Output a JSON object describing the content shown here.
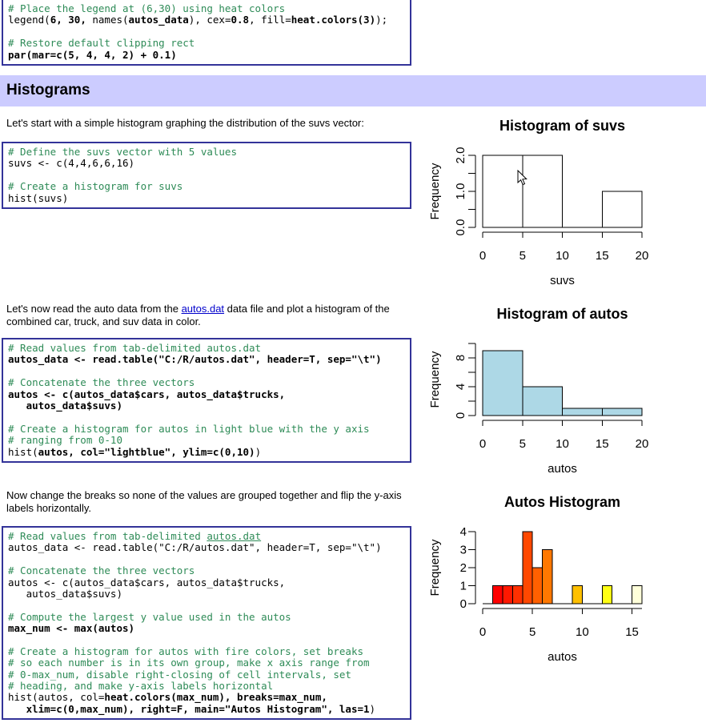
{
  "header": {
    "title": "Histograms"
  },
  "paragraphs": {
    "intro_suvs": "Let's start with a simple histogram graphing the distribution of the suvs vector:",
    "intro_autos_before": "Let's now read the auto data from the ",
    "intro_autos_link": "autos.dat",
    "intro_autos_after": " data file and plot a histogram of the combined car, truck, and suv data in color.",
    "intro_breaks": "Now change the breaks so none of the values are grouped together and flip the y-axis labels horizontally."
  },
  "colors": {
    "header_bg": "#CCCCFF",
    "code_border": "#333399",
    "comment_green": "#2E8B57",
    "link_blue": "#0000CC",
    "light_blue": "#ADD8E6"
  },
  "code_blocks": [
    {
      "lines": [
        [
          {
            "t": "# Place the legend at (6,30) using heat colors",
            "s": "c"
          }
        ],
        [
          {
            "t": "legend(",
            "s": "n"
          },
          {
            "t": "6, 30,",
            "s": "b"
          },
          {
            "t": " names(",
            "s": "n"
          },
          {
            "t": "autos_data",
            "s": "b"
          },
          {
            "t": "), cex=",
            "s": "n"
          },
          {
            "t": "0.8",
            "s": "b"
          },
          {
            "t": ", fill=",
            "s": "n"
          },
          {
            "t": "heat.colors(3)",
            "s": "b"
          },
          {
            "t": ");",
            "s": "n"
          }
        ],
        [],
        [
          {
            "t": "# Restore default clipping rect",
            "s": "c"
          }
        ],
        [
          {
            "t": "par(mar=c(5, 4, 4, 2) + 0.1)",
            "s": "b"
          }
        ]
      ]
    },
    {
      "lines": [
        [
          {
            "t": "# Define the suvs vector with 5 values",
            "s": "c"
          }
        ],
        [
          {
            "t": "suvs <- c(4,4,6,6,16)",
            "s": "n"
          }
        ],
        [],
        [
          {
            "t": "# Create a histogram for suvs",
            "s": "c"
          }
        ],
        [
          {
            "t": "hist(suvs)",
            "s": "n"
          }
        ]
      ]
    },
    {
      "lines": [
        [
          {
            "t": "# Read values from tab-delimited autos.dat",
            "s": "c"
          }
        ],
        [
          {
            "t": "autos_data <- read.table(\"C:/R/autos.dat\", header=T, sep=\"\\t\")",
            "s": "b"
          }
        ],
        [],
        [
          {
            "t": "# Concatenate the three vectors",
            "s": "c"
          }
        ],
        [
          {
            "t": "autos <- c(autos_data$cars, autos_data$trucks,",
            "s": "b"
          }
        ],
        [
          {
            "t": "   autos_data$suvs)",
            "s": "b"
          }
        ],
        [],
        [
          {
            "t": "# Create a histogram for autos in light blue with the y axis",
            "s": "c"
          }
        ],
        [
          {
            "t": "# ranging from 0-10",
            "s": "c"
          }
        ],
        [
          {
            "t": "hist(",
            "s": "n"
          },
          {
            "t": "autos, col=\"lightblue\", ylim=c(0,10)",
            "s": "b"
          },
          {
            "t": ")",
            "s": "n"
          }
        ]
      ]
    },
    {
      "lines": [
        [
          {
            "t": "# Read values from tab-delimited ",
            "s": "c"
          },
          {
            "t": "autos.dat",
            "s": "cl"
          }
        ],
        [
          {
            "t": "autos_data <- read.table(\"C:/R/autos.dat\", header=T, sep=\"\\t\")",
            "s": "n"
          }
        ],
        [],
        [
          {
            "t": "# Concatenate the three vectors",
            "s": "c"
          }
        ],
        [
          {
            "t": "autos <- c(autos_data$cars, autos_data$trucks,",
            "s": "n"
          }
        ],
        [
          {
            "t": "   autos_data$suvs)",
            "s": "n"
          }
        ],
        [],
        [
          {
            "t": "# Compute the largest y value used in the autos",
            "s": "c"
          }
        ],
        [
          {
            "t": "max_num <- max(autos)",
            "s": "b"
          }
        ],
        [],
        [
          {
            "t": "# Create a histogram for autos with fire colors, set breaks",
            "s": "c"
          }
        ],
        [
          {
            "t": "# so each number is in its own group, make x axis range from",
            "s": "c"
          }
        ],
        [
          {
            "t": "# 0-max_num, disable right-closing of cell intervals, set",
            "s": "c"
          }
        ],
        [
          {
            "t": "# heading, and make y-axis labels horizontal",
            "s": "c"
          }
        ],
        [
          {
            "t": "hist(autos, col=",
            "s": "n"
          },
          {
            "t": "heat.colors(max_num), breaks=max_num,",
            "s": "b"
          }
        ],
        [
          {
            "t": "   ",
            "s": "n"
          },
          {
            "t": "xlim=c(0,max_num), right=F, main=\"Autos Histogram\", las=1",
            "s": "b"
          },
          {
            "t": ")",
            "s": "n"
          }
        ]
      ]
    }
  ],
  "chart_data": [
    {
      "type": "bar",
      "title": "Histogram of suvs",
      "xlabel": "suvs",
      "ylabel": "Frequency",
      "xlim": [
        0,
        20
      ],
      "ylim": [
        0,
        2
      ],
      "xticks": [
        0,
        5,
        10,
        15,
        20
      ],
      "yticks": [
        {
          "v": 0,
          "label": "0.0"
        },
        {
          "v": 0.5,
          "label": ""
        },
        {
          "v": 1,
          "label": "1.0"
        },
        {
          "v": 1.5,
          "label": ""
        },
        {
          "v": 2,
          "label": "2.0"
        }
      ],
      "las": 0,
      "grid": false,
      "bars": [
        {
          "from": 0,
          "to": 5,
          "count": 2,
          "color": "#FFFFFF"
        },
        {
          "from": 5,
          "to": 10,
          "count": 2,
          "color": "#FFFFFF"
        },
        {
          "from": 15,
          "to": 20,
          "count": 1,
          "color": "#FFFFFF"
        }
      ]
    },
    {
      "type": "bar",
      "title": "Histogram of autos",
      "xlabel": "autos",
      "ylabel": "Frequency",
      "xlim": [
        0,
        20
      ],
      "ylim": [
        0,
        10
      ],
      "xticks": [
        0,
        5,
        10,
        15,
        20
      ],
      "yticks": [
        {
          "v": 0,
          "label": "0"
        },
        {
          "v": 2,
          "label": ""
        },
        {
          "v": 4,
          "label": "4"
        },
        {
          "v": 6,
          "label": ""
        },
        {
          "v": 8,
          "label": "8"
        },
        {
          "v": 10,
          "label": ""
        }
      ],
      "las": 0,
      "grid": false,
      "bars": [
        {
          "from": 0,
          "to": 5,
          "count": 9,
          "color": "#ADD8E6"
        },
        {
          "from": 5,
          "to": 10,
          "count": 4,
          "color": "#ADD8E6"
        },
        {
          "from": 10,
          "to": 15,
          "count": 1,
          "color": "#ADD8E6"
        },
        {
          "from": 15,
          "to": 20,
          "count": 1,
          "color": "#ADD8E6"
        }
      ]
    },
    {
      "type": "bar",
      "title": "Autos Histogram",
      "xlabel": "autos",
      "ylabel": "Frequency",
      "xlim": [
        0,
        16
      ],
      "ylim": [
        0,
        4
      ],
      "xticks": [
        0,
        5,
        10,
        15
      ],
      "yticks": [
        {
          "v": 0,
          "label": "0"
        },
        {
          "v": 1,
          "label": "1"
        },
        {
          "v": 2,
          "label": "2"
        },
        {
          "v": 3,
          "label": "3"
        },
        {
          "v": 4,
          "label": "4"
        }
      ],
      "las": 1,
      "grid": false,
      "bars": [
        {
          "from": 1,
          "to": 2,
          "count": 1,
          "color": "#FF0000"
        },
        {
          "from": 2,
          "to": 3,
          "count": 1,
          "color": "#FF1800"
        },
        {
          "from": 3,
          "to": 4,
          "count": 1,
          "color": "#FF3000"
        },
        {
          "from": 4,
          "to": 5,
          "count": 4,
          "color": "#FF4800"
        },
        {
          "from": 5,
          "to": 6,
          "count": 2,
          "color": "#FF6000"
        },
        {
          "from": 6,
          "to": 7,
          "count": 3,
          "color": "#FF7800"
        },
        {
          "from": 9,
          "to": 10,
          "count": 1,
          "color": "#FFC000"
        },
        {
          "from": 12,
          "to": 13,
          "count": 1,
          "color": "#FFFF15"
        },
        {
          "from": 15,
          "to": 16,
          "count": 1,
          "color": "#FFFFDA"
        }
      ]
    }
  ]
}
